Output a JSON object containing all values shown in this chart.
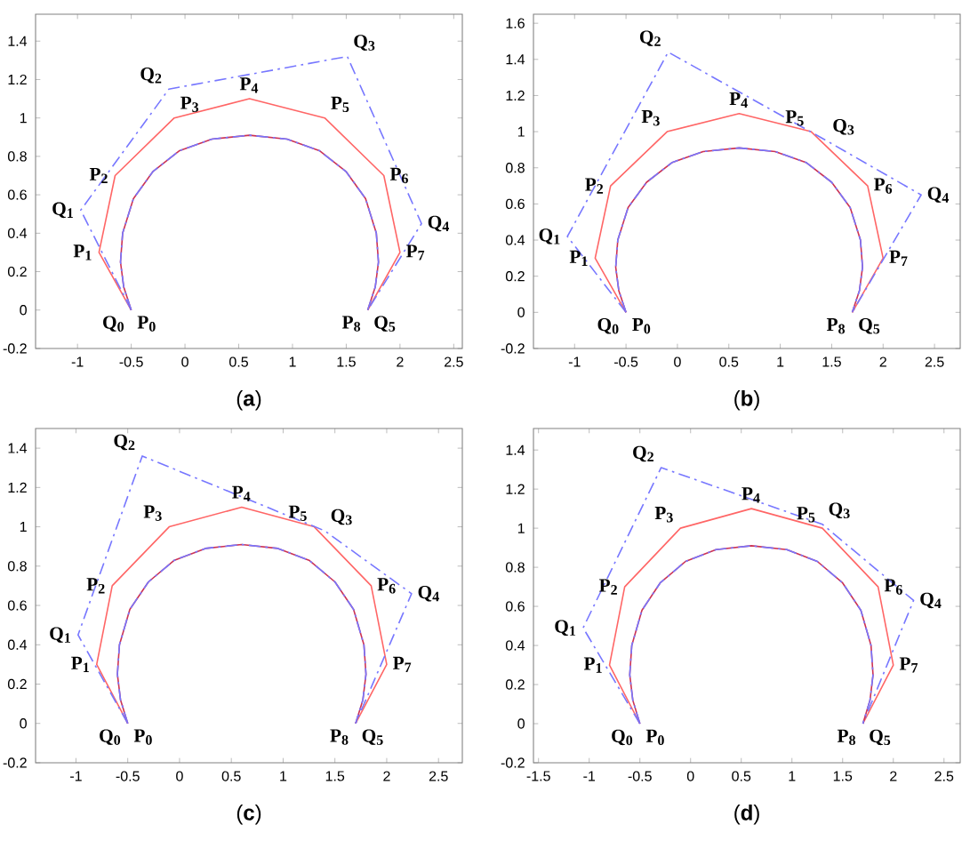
{
  "chart_data": [
    {
      "type": "line",
      "xlabel": "(**a**)",
      "xlim": [
        -1.39,
        2.58
      ],
      "ylim": [
        -0.2,
        1.54
      ],
      "xticks": [
        -1,
        -0.5,
        0,
        0.5,
        1,
        1.5,
        2,
        2.5
      ],
      "yticks": [
        -0.2,
        0,
        0.2,
        0.4,
        0.6,
        0.8,
        1,
        1.2,
        1.4
      ],
      "marker": "none",
      "grid": false,
      "series": [
        {
          "color": "#ff6666",
          "line_style": "solid",
          "x": [
            -0.5,
            -0.8,
            -0.65,
            -0.1,
            0.6,
            1.3,
            1.85,
            2,
            1.7
          ],
          "values": [
            0,
            0.3,
            0.7,
            1,
            1.1,
            1,
            0.7,
            0.3,
            0
          ]
        },
        {
          "color": "#7777ff",
          "line_style": "dashed",
          "x": [
            -0.5,
            -0.97,
            -0.15,
            1.51,
            2.2,
            1.7
          ],
          "values": [
            0,
            0.52,
            1.15,
            1.32,
            0.45,
            0
          ]
        },
        {
          "color": "#cc3355",
          "line_style": "solid",
          "x": [
            -0.5,
            -0.57,
            -0.6,
            -0.58,
            -0.48,
            -0.3,
            -0.05,
            0.25,
            0.6,
            0.95,
            1.25,
            1.5,
            1.68,
            1.78,
            1.8,
            1.77,
            1.7
          ],
          "values": [
            0,
            0.12,
            0.25,
            0.4,
            0.58,
            0.72,
            0.83,
            0.89,
            0.91,
            0.89,
            0.83,
            0.72,
            0.58,
            0.4,
            0.25,
            0.12,
            0
          ]
        },
        {
          "color": "#7777ff",
          "line_style": "dashed",
          "x": [
            -0.5,
            -0.57,
            -0.6,
            -0.58,
            -0.48,
            -0.3,
            -0.05,
            0.25,
            0.6,
            0.95,
            1.25,
            1.5,
            1.68,
            1.78,
            1.8,
            1.77,
            1.7
          ],
          "values": [
            0,
            0.12,
            0.25,
            0.4,
            0.58,
            0.72,
            0.83,
            0.89,
            0.91,
            0.89,
            0.83,
            0.72,
            0.58,
            0.4,
            0.25,
            0.12,
            0
          ]
        }
      ],
      "annotations": [
        {
          "text": "P$_{0}$",
          "x": -0.5,
          "y": 0
        },
        {
          "text": "P$_{1}$",
          "x": -0.8,
          "y": 0.3
        },
        {
          "text": "P$_{2}$",
          "x": -0.65,
          "y": 0.7
        },
        {
          "text": "P$_{3}$",
          "x": -0.1,
          "y": 1
        },
        {
          "text": "P$_{4}$",
          "x": 0.6,
          "y": 1.1
        },
        {
          "text": "P$_{5}$",
          "x": 1.3,
          "y": 1
        },
        {
          "text": "P$_{6}$",
          "x": 1.85,
          "y": 0.7
        },
        {
          "text": "P$_{7}$",
          "x": 2,
          "y": 0.3
        },
        {
          "text": "P$_{8}$",
          "x": 1.7,
          "y": 0
        },
        {
          "text": "Q$_{0}$",
          "x": -0.5,
          "y": 0
        },
        {
          "text": "Q$_{1}$",
          "x": -0.97,
          "y": 0.52
        },
        {
          "text": "Q$_{2}$",
          "x": -0.15,
          "y": 1.15
        },
        {
          "text": "Q$_{3}$",
          "x": 1.51,
          "y": 1.32
        },
        {
          "text": "Q$_{4}$",
          "x": 2.2,
          "y": 0.45
        },
        {
          "text": "Q$_{5}$",
          "x": 1.7,
          "y": 0
        }
      ]
    },
    {
      "type": "line",
      "xlabel": "(**b**)",
      "xlim": [
        -1.4,
        2.75
      ],
      "ylim": [
        -0.2,
        1.65
      ],
      "xticks": [
        -1,
        -0.5,
        0,
        0.5,
        1,
        1.5,
        2,
        2.5
      ],
      "yticks": [
        -0.2,
        0,
        0.2,
        0.4,
        0.6,
        0.8,
        1,
        1.2,
        1.4,
        1.6
      ],
      "marker": "none",
      "grid": false,
      "series": [
        {
          "color": "#ff6666",
          "line_style": "solid",
          "x": [
            -0.5,
            -0.8,
            -0.65,
            -0.1,
            0.6,
            1.3,
            1.85,
            2,
            1.7
          ],
          "values": [
            0,
            0.3,
            0.7,
            1,
            1.1,
            1,
            0.7,
            0.3,
            0
          ]
        },
        {
          "color": "#7777ff",
          "line_style": "dashed",
          "x": [
            -0.5,
            -1.07,
            -0.09,
            1.45,
            2.37,
            1.7
          ],
          "values": [
            0,
            0.42,
            1.44,
            0.95,
            0.65,
            0
          ]
        },
        {
          "color": "#cc3355",
          "line_style": "solid",
          "x": [
            -0.5,
            -0.57,
            -0.6,
            -0.58,
            -0.48,
            -0.3,
            -0.05,
            0.25,
            0.6,
            0.95,
            1.25,
            1.5,
            1.68,
            1.78,
            1.8,
            1.77,
            1.7
          ],
          "values": [
            0,
            0.12,
            0.25,
            0.4,
            0.58,
            0.72,
            0.83,
            0.89,
            0.91,
            0.89,
            0.83,
            0.72,
            0.58,
            0.4,
            0.25,
            0.12,
            0
          ]
        },
        {
          "color": "#7777ff",
          "line_style": "dashed",
          "x": [
            -0.5,
            -0.57,
            -0.6,
            -0.58,
            -0.48,
            -0.3,
            -0.05,
            0.25,
            0.6,
            0.95,
            1.25,
            1.5,
            1.68,
            1.78,
            1.8,
            1.77,
            1.7
          ],
          "values": [
            0,
            0.12,
            0.25,
            0.4,
            0.58,
            0.72,
            0.83,
            0.89,
            0.91,
            0.89,
            0.83,
            0.72,
            0.58,
            0.4,
            0.25,
            0.12,
            0
          ]
        }
      ],
      "annotations": [
        {
          "text": "P$_{0}$",
          "x": -0.5,
          "y": 0
        },
        {
          "text": "P$_{1}$",
          "x": -0.8,
          "y": 0.3
        },
        {
          "text": "P$_{2}$",
          "x": -0.65,
          "y": 0.7
        },
        {
          "text": "P$_{3}$",
          "x": -0.1,
          "y": 1
        },
        {
          "text": "P$_{4}$",
          "x": 0.6,
          "y": 1.1
        },
        {
          "text": "P$_{5}$",
          "x": 1.3,
          "y": 1
        },
        {
          "text": "P$_{6}$",
          "x": 1.85,
          "y": 0.7
        },
        {
          "text": "P$_{7}$",
          "x": 2,
          "y": 0.3
        },
        {
          "text": "P$_{8}$",
          "x": 1.7,
          "y": 0
        },
        {
          "text": "Q$_{0}$",
          "x": -0.5,
          "y": 0
        },
        {
          "text": "Q$_{1}$",
          "x": -1.07,
          "y": 0.42
        },
        {
          "text": "Q$_{2}$",
          "x": -0.09,
          "y": 1.44
        },
        {
          "text": "Q$_{3}$",
          "x": 1.45,
          "y": 0.95
        },
        {
          "text": "Q$_{4}$",
          "x": 2.37,
          "y": 0.65
        },
        {
          "text": "Q$_{5}$",
          "x": 1.7,
          "y": 0
        }
      ]
    },
    {
      "type": "line",
      "xlabel": "(**c**)",
      "xlim": [
        -1.39,
        2.73
      ],
      "ylim": [
        -0.2,
        1.5
      ],
      "xticks": [
        -1,
        -0.5,
        0,
        0.5,
        1,
        1.5,
        2,
        2.5
      ],
      "yticks": [
        -0.2,
        0,
        0.2,
        0.4,
        0.6,
        0.8,
        1,
        1.2,
        1.4
      ],
      "marker": "none",
      "grid": false,
      "series": [
        {
          "color": "#ff6666",
          "line_style": "solid",
          "x": [
            -0.5,
            -0.8,
            -0.65,
            -0.1,
            0.6,
            1.3,
            1.85,
            2,
            1.7
          ],
          "values": [
            0,
            0.3,
            0.7,
            1,
            1.1,
            1,
            0.7,
            0.3,
            0
          ]
        },
        {
          "color": "#7777ff",
          "line_style": "dashed",
          "x": [
            -0.5,
            -0.98,
            -0.36,
            1.4,
            2.24,
            1.7
          ],
          "values": [
            0,
            0.45,
            1.36,
            0.98,
            0.66,
            0
          ]
        },
        {
          "color": "#cc3355",
          "line_style": "solid",
          "x": [
            -0.5,
            -0.57,
            -0.6,
            -0.58,
            -0.48,
            -0.3,
            -0.05,
            0.25,
            0.6,
            0.95,
            1.25,
            1.5,
            1.68,
            1.78,
            1.8,
            1.77,
            1.7
          ],
          "values": [
            0,
            0.12,
            0.25,
            0.4,
            0.58,
            0.72,
            0.83,
            0.89,
            0.91,
            0.89,
            0.83,
            0.72,
            0.58,
            0.4,
            0.25,
            0.12,
            0
          ]
        },
        {
          "color": "#7777ff",
          "line_style": "dashed",
          "x": [
            -0.5,
            -0.57,
            -0.6,
            -0.58,
            -0.48,
            -0.3,
            -0.05,
            0.25,
            0.6,
            0.95,
            1.25,
            1.5,
            1.68,
            1.78,
            1.8,
            1.77,
            1.7
          ],
          "values": [
            0,
            0.12,
            0.25,
            0.4,
            0.58,
            0.72,
            0.83,
            0.89,
            0.91,
            0.89,
            0.83,
            0.72,
            0.58,
            0.4,
            0.25,
            0.12,
            0
          ]
        }
      ],
      "annotations": [
        {
          "text": "P$_{0}$",
          "x": -0.5,
          "y": 0
        },
        {
          "text": "P$_{1}$",
          "x": -0.8,
          "y": 0.3
        },
        {
          "text": "P$_{2}$",
          "x": -0.65,
          "y": 0.7
        },
        {
          "text": "P$_{3}$",
          "x": -0.1,
          "y": 1
        },
        {
          "text": "P$_{4}$",
          "x": 0.6,
          "y": 1.1
        },
        {
          "text": "P$_{5}$",
          "x": 1.3,
          "y": 1
        },
        {
          "text": "P$_{6}$",
          "x": 1.85,
          "y": 0.7
        },
        {
          "text": "P$_{7}$",
          "x": 2,
          "y": 0.3
        },
        {
          "text": "P$_{8}$",
          "x": 1.7,
          "y": 0
        },
        {
          "text": "Q$_{0}$",
          "x": -0.5,
          "y": 0
        },
        {
          "text": "Q$_{1}$",
          "x": -0.98,
          "y": 0.45
        },
        {
          "text": "Q$_{2}$",
          "x": -0.36,
          "y": 1.36
        },
        {
          "text": "Q$_{3}$",
          "x": 1.4,
          "y": 0.98
        },
        {
          "text": "Q$_{4}$",
          "x": 2.24,
          "y": 0.66
        },
        {
          "text": "Q$_{5}$",
          "x": 1.7,
          "y": 0
        }
      ]
    },
    {
      "type": "line",
      "xlabel": "(**d**)",
      "xlim": [
        -1.55,
        2.66
      ],
      "ylim": [
        -0.2,
        1.51
      ],
      "xticks": [
        -1.5,
        -1,
        -0.5,
        0,
        0.5,
        1,
        1.5,
        2,
        2.5
      ],
      "yticks": [
        -0.2,
        0,
        0.2,
        0.4,
        0.6,
        0.8,
        1,
        1.2,
        1.4
      ],
      "marker": "none",
      "grid": false,
      "series": [
        {
          "color": "#ff6666",
          "line_style": "solid",
          "x": [
            -0.5,
            -0.8,
            -0.65,
            -0.1,
            0.6,
            1.3,
            1.85,
            2,
            1.7
          ],
          "values": [
            0,
            0.3,
            0.7,
            1,
            1.1,
            1,
            0.7,
            0.3,
            0
          ]
        },
        {
          "color": "#7777ff",
          "line_style": "dashed",
          "x": [
            -0.5,
            -1.06,
            -0.29,
            1.3,
            2.2,
            1.7
          ],
          "values": [
            0,
            0.49,
            1.31,
            1.02,
            0.63,
            0
          ]
        },
        {
          "color": "#cc3355",
          "line_style": "solid",
          "x": [
            -0.5,
            -0.57,
            -0.6,
            -0.58,
            -0.48,
            -0.3,
            -0.05,
            0.25,
            0.6,
            0.95,
            1.25,
            1.5,
            1.68,
            1.78,
            1.8,
            1.77,
            1.7
          ],
          "values": [
            0,
            0.12,
            0.25,
            0.4,
            0.58,
            0.72,
            0.83,
            0.89,
            0.91,
            0.89,
            0.83,
            0.72,
            0.58,
            0.4,
            0.25,
            0.12,
            0
          ]
        },
        {
          "color": "#7777ff",
          "line_style": "dashed",
          "x": [
            -0.5,
            -0.57,
            -0.6,
            -0.58,
            -0.48,
            -0.3,
            -0.05,
            0.25,
            0.6,
            0.95,
            1.25,
            1.5,
            1.68,
            1.78,
            1.8,
            1.77,
            1.7
          ],
          "values": [
            0,
            0.12,
            0.25,
            0.4,
            0.58,
            0.72,
            0.83,
            0.89,
            0.91,
            0.89,
            0.83,
            0.72,
            0.58,
            0.4,
            0.25,
            0.12,
            0
          ]
        }
      ],
      "annotations": [
        {
          "text": "P$_{0}$",
          "x": -0.5,
          "y": 0
        },
        {
          "text": "P$_{1}$",
          "x": -0.8,
          "y": 0.3
        },
        {
          "text": "P$_{2}$",
          "x": -0.65,
          "y": 0.7
        },
        {
          "text": "P$_{3}$",
          "x": -0.1,
          "y": 1
        },
        {
          "text": "P$_{4}$",
          "x": 0.6,
          "y": 1.1
        },
        {
          "text": "P$_{5}$",
          "x": 1.3,
          "y": 1
        },
        {
          "text": "P$_{6}$",
          "x": 1.85,
          "y": 0.7
        },
        {
          "text": "P$_{7}$",
          "x": 2,
          "y": 0.3
        },
        {
          "text": "P$_{8}$",
          "x": 1.7,
          "y": 0
        },
        {
          "text": "Q$_{0}$",
          "x": -0.5,
          "y": 0
        },
        {
          "text": "Q$_{1}$",
          "x": -1.06,
          "y": 0.49
        },
        {
          "text": "Q$_{2}$",
          "x": -0.29,
          "y": 1.31
        },
        {
          "text": "Q$_{3}$",
          "x": 1.3,
          "y": 1.02
        },
        {
          "text": "Q$_{4}$",
          "x": 2.2,
          "y": 0.63
        },
        {
          "text": "Q$_{5}$",
          "x": 1.7,
          "y": 0
        }
      ]
    }
  ]
}
